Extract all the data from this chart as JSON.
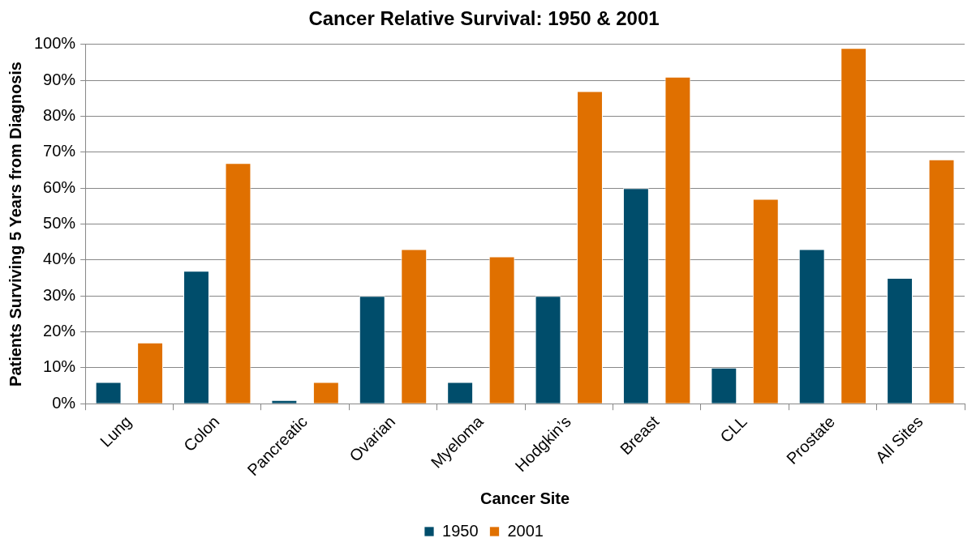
{
  "chart_data": {
    "type": "bar",
    "title": "Cancer Relative Survival: 1950 & 2001",
    "xlabel": "Cancer Site",
    "ylabel": "Patients Surviving 5 Years from Diagnosis",
    "categories": [
      "Lung",
      "Colon",
      "Pancreatic",
      "Ovarian",
      "Myeloma",
      "Hodgkin’s",
      "Breast",
      "CLL",
      "Prostate",
      "All Sites"
    ],
    "series": [
      {
        "name": "1950",
        "color": "#004d6b",
        "values": [
          6,
          37,
          1,
          30,
          6,
          30,
          60,
          10,
          43,
          35
        ]
      },
      {
        "name": "2001",
        "color": "#e07000",
        "values": [
          17,
          67,
          6,
          43,
          41,
          87,
          91,
          57,
          99,
          68
        ]
      }
    ],
    "ylim": [
      0,
      100
    ],
    "yticks": [
      {
        "value": 0,
        "label": "0%"
      },
      {
        "value": 10,
        "label": "10%"
      },
      {
        "value": 20,
        "label": "20%"
      },
      {
        "value": 30,
        "label": "30%"
      },
      {
        "value": 40,
        "label": "40%"
      },
      {
        "value": 50,
        "label": "50%"
      },
      {
        "value": 60,
        "label": "60%"
      },
      {
        "value": 70,
        "label": "70%"
      },
      {
        "value": 80,
        "label": "80%"
      },
      {
        "value": 90,
        "label": "90%"
      },
      {
        "value": 100,
        "label": "100%"
      }
    ],
    "grid": "y",
    "legend": "bottom"
  }
}
